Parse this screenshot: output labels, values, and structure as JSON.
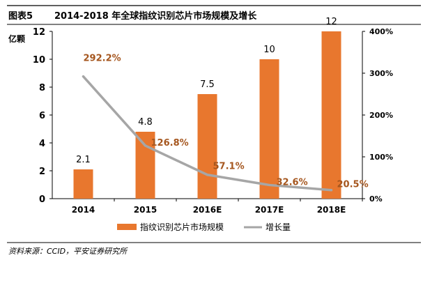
{
  "figure": {
    "label": "图表5",
    "title": "2014-2018 年全球指纹识别芯片市场规模及增长"
  },
  "source_note": "资料来源：CCID，平安证券研究所",
  "colors": {
    "bar": "#E8772E",
    "line": "#A6A6A6",
    "growth_label": "#A5561E",
    "text": "#000000"
  },
  "chart_data": {
    "type": "bar",
    "categories": [
      "2014",
      "2015",
      "2016E",
      "2017E",
      "2018E"
    ],
    "series": [
      {
        "name": "指纹识别芯片市场规模",
        "type": "bar",
        "axis": "left",
        "values": [
          2.1,
          4.8,
          7.5,
          10,
          12
        ],
        "labels": [
          "2.1",
          "4.8",
          "7.5",
          "10",
          "12"
        ]
      },
      {
        "name": "增长量",
        "type": "line",
        "axis": "right",
        "values": [
          292.2,
          126.8,
          57.1,
          32.6,
          20.5
        ],
        "labels": [
          "292.2%",
          "126.8%",
          "57.1%",
          "32.6%",
          "20.5%"
        ]
      }
    ],
    "y_left": {
      "label": "亿颗",
      "range": [
        0,
        12
      ],
      "ticks": [
        "0",
        "2",
        "4",
        "6",
        "8",
        "10",
        "12"
      ]
    },
    "y_right": {
      "range": [
        0,
        400
      ],
      "ticks": [
        "0%",
        "100%",
        "200%",
        "300%",
        "400%"
      ]
    },
    "grid": false,
    "legend_position": "bottom"
  }
}
